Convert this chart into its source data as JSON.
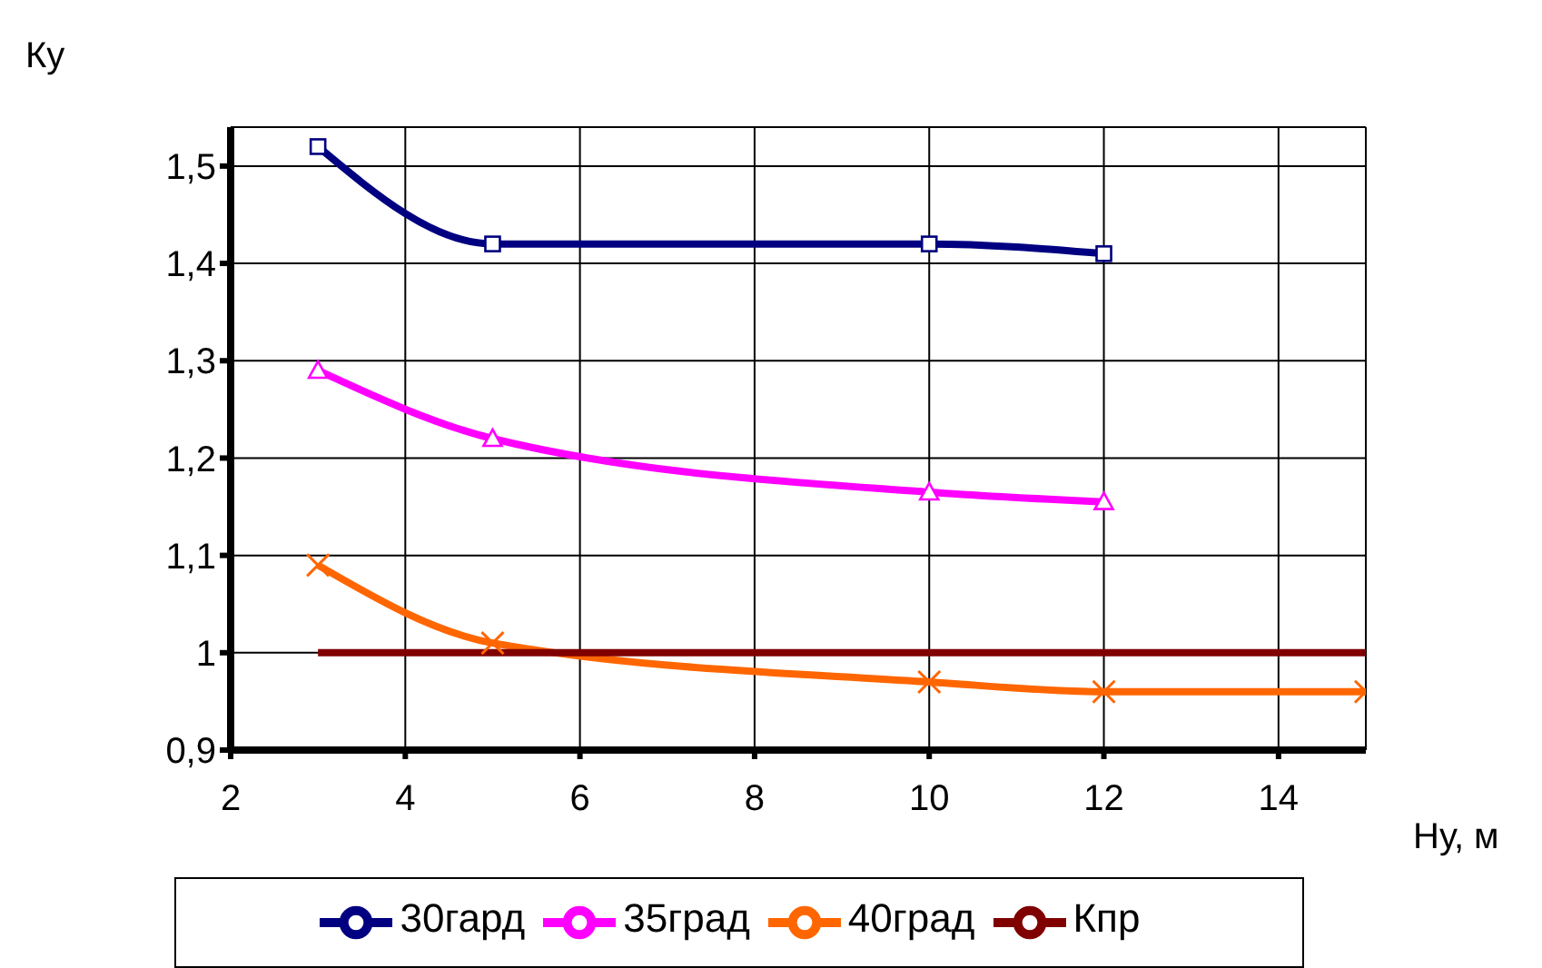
{
  "chart_data": {
    "type": "line",
    "xlabel": "Ну, м",
    "ylabel": "Ку",
    "xlim": [
      2,
      15
    ],
    "xticks": [
      2,
      4,
      6,
      8,
      10,
      12,
      14
    ],
    "ylim": [
      0.9,
      1.54
    ],
    "yticks": [
      {
        "value": 0.9,
        "label": "0,9"
      },
      1,
      {
        "value": 1.1,
        "label": "1,1"
      },
      {
        "value": 1.2,
        "label": "1,2"
      },
      {
        "value": 1.3,
        "label": "1,3"
      },
      {
        "value": 1.4,
        "label": "1,4"
      },
      {
        "value": 1.5,
        "label": "1,5"
      }
    ],
    "grid": true,
    "legend": "bottom",
    "line_style": "solid",
    "series": [
      {
        "name": "30гард",
        "color": "#000080",
        "marker": "square",
        "x": [
          3,
          5,
          10,
          12
        ],
        "values": [
          1.52,
          1.42,
          1.42,
          1.41
        ]
      },
      {
        "name": "35град",
        "color": "#ff00ff",
        "marker": "triangle",
        "x": [
          3,
          5,
          10,
          12
        ],
        "values": [
          1.29,
          1.22,
          1.165,
          1.155
        ]
      },
      {
        "name": "40град",
        "color": "#ff6600",
        "marker": "cross",
        "x": [
          3,
          5,
          10,
          12,
          15
        ],
        "values": [
          1.09,
          1.01,
          0.97,
          0.96,
          0.96
        ]
      },
      {
        "name": "Кпр",
        "color": "#800000",
        "marker": "none",
        "x": [
          3,
          15
        ],
        "values": [
          1,
          1
        ]
      }
    ]
  }
}
